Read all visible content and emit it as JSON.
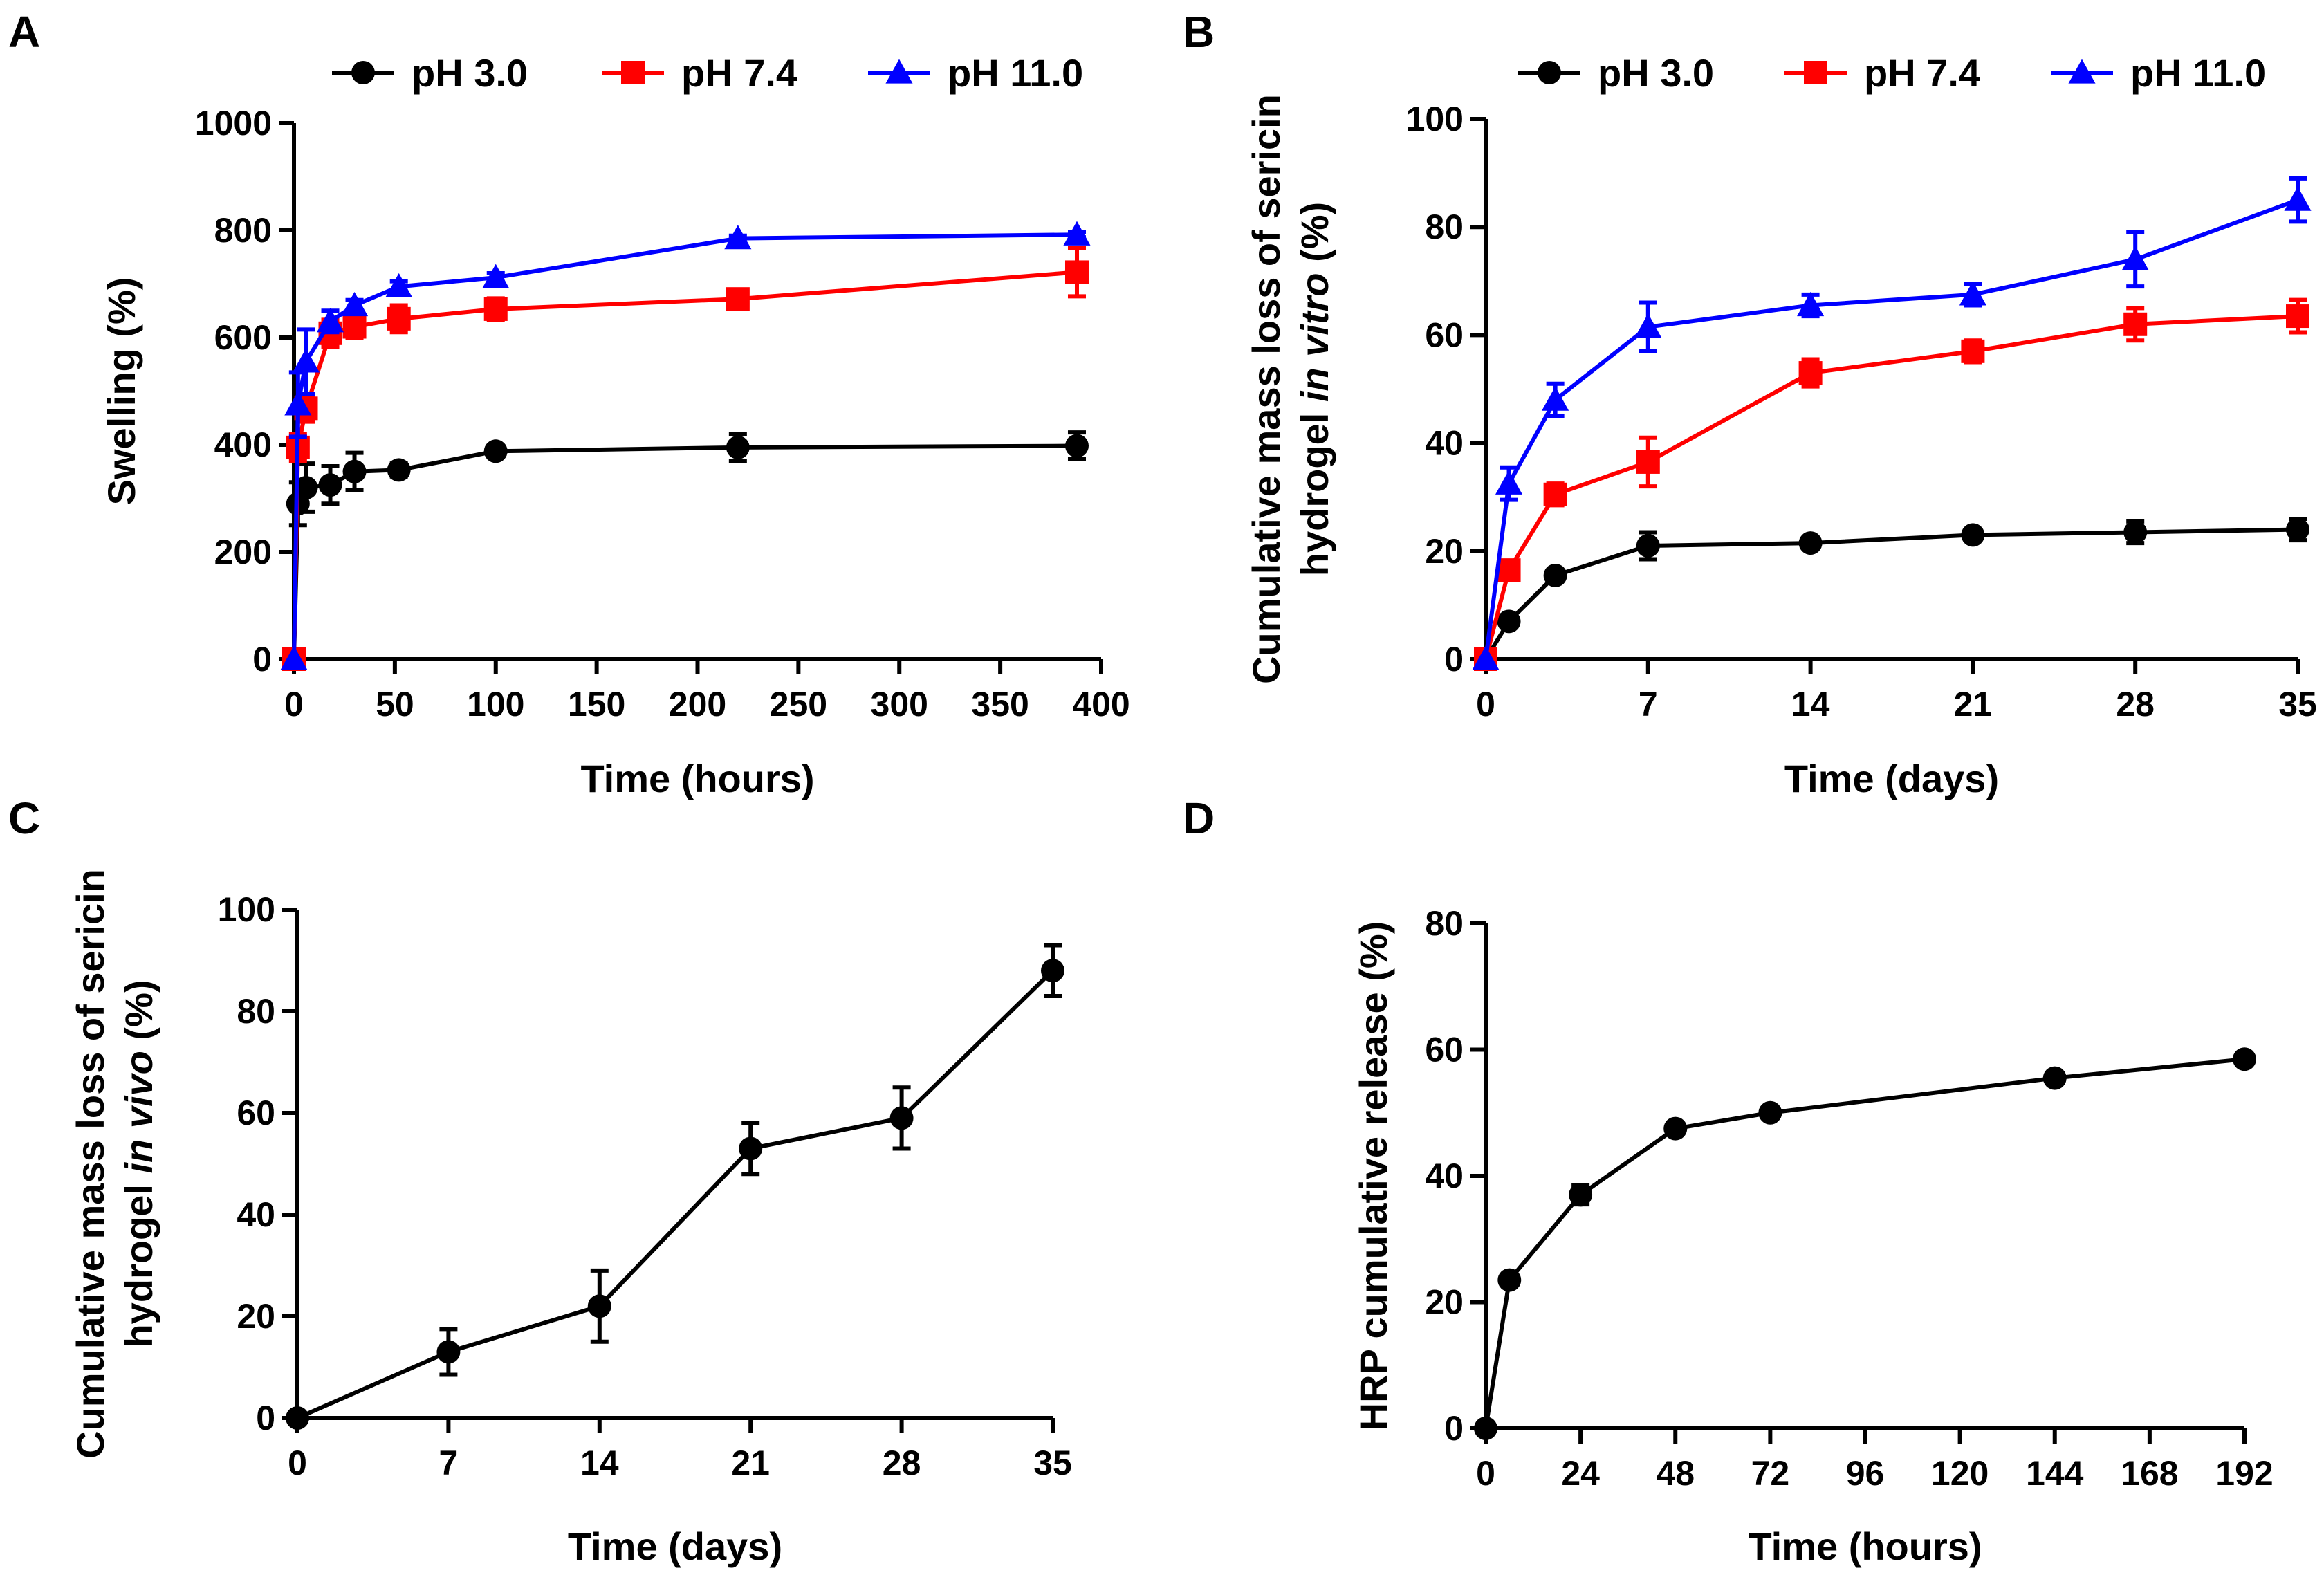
{
  "figure": {
    "panels": [
      {
        "letter": "A"
      },
      {
        "letter": "B"
      },
      {
        "letter": "C"
      },
      {
        "letter": "D"
      }
    ]
  },
  "chart_data": [
    {
      "panel": "A",
      "type": "line",
      "title": "",
      "xlabel": "Time (hours)",
      "ylabel": "Swelling (%)",
      "xlim": [
        0,
        400
      ],
      "ylim": [
        0,
        1000
      ],
      "xticks": [
        0,
        50,
        100,
        150,
        200,
        250,
        300,
        350,
        400
      ],
      "yticks": [
        0,
        200,
        400,
        600,
        800,
        1000
      ],
      "legend": "top",
      "series": [
        {
          "name": "pH 3.0",
          "color": "#000000",
          "marker": "circle",
          "x": [
            0,
            2,
            6,
            18,
            30,
            52,
            100,
            220,
            388
          ],
          "y": [
            0,
            290,
            320,
            325,
            350,
            353,
            388,
            395,
            398
          ],
          "err": [
            0,
            40,
            45,
            35,
            35,
            12,
            10,
            25,
            25
          ]
        },
        {
          "name": "pH 7.4",
          "color": "#ff0000",
          "marker": "square",
          "x": [
            0,
            2,
            6,
            18,
            30,
            52,
            100,
            220,
            388
          ],
          "y": [
            0,
            395,
            468,
            608,
            620,
            635,
            653,
            672,
            722
          ],
          "err": [
            0,
            25,
            25,
            25,
            20,
            25,
            20,
            15,
            45
          ]
        },
        {
          "name": "pH 11.0",
          "color": "#0000ff",
          "marker": "triangle",
          "x": [
            0,
            2,
            6,
            18,
            30,
            52,
            100,
            220,
            388
          ],
          "y": [
            0,
            475,
            555,
            630,
            660,
            695,
            712,
            785,
            792
          ],
          "err": [
            0,
            60,
            60,
            20,
            10,
            10,
            8,
            5,
            5
          ]
        }
      ]
    },
    {
      "panel": "B",
      "type": "line",
      "title": "",
      "xlabel": "Time (days)",
      "ylabel_line1": "Cumulative mass loss of sericin",
      "ylabel_line2_prefix": "hydrogel ",
      "ylabel_line2_italic": "in vitro",
      "ylabel_line2_suffix": " (%)",
      "xlim": [
        0,
        35
      ],
      "ylim": [
        0,
        100
      ],
      "xticks": [
        0,
        7,
        14,
        21,
        28,
        35
      ],
      "yticks": [
        0,
        20,
        40,
        60,
        80,
        100
      ],
      "legend": "top",
      "series": [
        {
          "name": "pH 3.0",
          "color": "#000000",
          "marker": "circle",
          "x": [
            0,
            1,
            3,
            7,
            14,
            21,
            28,
            35
          ],
          "y": [
            0,
            7,
            15.5,
            21,
            21.5,
            23,
            23.5,
            24
          ],
          "err": [
            0,
            0.5,
            0.5,
            2.5,
            0.8,
            0.5,
            2,
            2
          ]
        },
        {
          "name": "pH 7.4",
          "color": "#ff0000",
          "marker": "square",
          "x": [
            0,
            1,
            3,
            7,
            14,
            21,
            28,
            35
          ],
          "y": [
            0,
            16.5,
            30.5,
            36.5,
            53,
            57,
            62,
            63.5
          ],
          "err": [
            0,
            1,
            2,
            4.5,
            2.5,
            2,
            3,
            3
          ]
        },
        {
          "name": "pH 11.0",
          "color": "#0000ff",
          "marker": "triangle",
          "x": [
            0,
            1,
            3,
            7,
            14,
            21,
            28,
            35
          ],
          "y": [
            0,
            32.5,
            48,
            61.5,
            65.5,
            67.5,
            74,
            85
          ],
          "err": [
            0,
            3,
            3,
            4.5,
            2,
            2,
            5,
            4
          ]
        }
      ]
    },
    {
      "panel": "C",
      "type": "line",
      "title": "",
      "xlabel": "Time (days)",
      "ylabel_line1": "Cumulative mass loss of sericin",
      "ylabel_line2_prefix": "hydrogel ",
      "ylabel_line2_italic": "in vivo",
      "ylabel_line2_suffix": " (%)",
      "xlim": [
        0,
        35
      ],
      "ylim": [
        0,
        100
      ],
      "xticks": [
        0,
        7,
        14,
        21,
        28,
        35
      ],
      "yticks": [
        0,
        20,
        40,
        60,
        80,
        100
      ],
      "series": [
        {
          "name": "in vivo",
          "color": "#000000",
          "marker": "circle",
          "x": [
            0,
            7,
            14,
            21,
            28,
            35
          ],
          "y": [
            0,
            13,
            22,
            53,
            59,
            88
          ],
          "err": [
            0,
            4.5,
            7,
            5,
            6,
            5
          ]
        }
      ]
    },
    {
      "panel": "D",
      "type": "line",
      "title": "",
      "xlabel": "Time (hours)",
      "ylabel": "HRP cumulative release (%)",
      "xlim": [
        0,
        192
      ],
      "ylim": [
        0,
        80
      ],
      "xticks": [
        0,
        24,
        48,
        72,
        96,
        120,
        144,
        168,
        192
      ],
      "yticks": [
        0,
        20,
        40,
        60,
        80
      ],
      "series": [
        {
          "name": "HRP",
          "color": "#000000",
          "marker": "circle",
          "x": [
            0,
            6,
            24,
            48,
            72,
            144,
            192
          ],
          "y": [
            0,
            23.5,
            37,
            47.5,
            50,
            55.5,
            58.5
          ],
          "err": [
            0,
            0.8,
            1.5,
            0.8,
            0.8,
            0.5,
            0.5
          ]
        }
      ]
    }
  ]
}
